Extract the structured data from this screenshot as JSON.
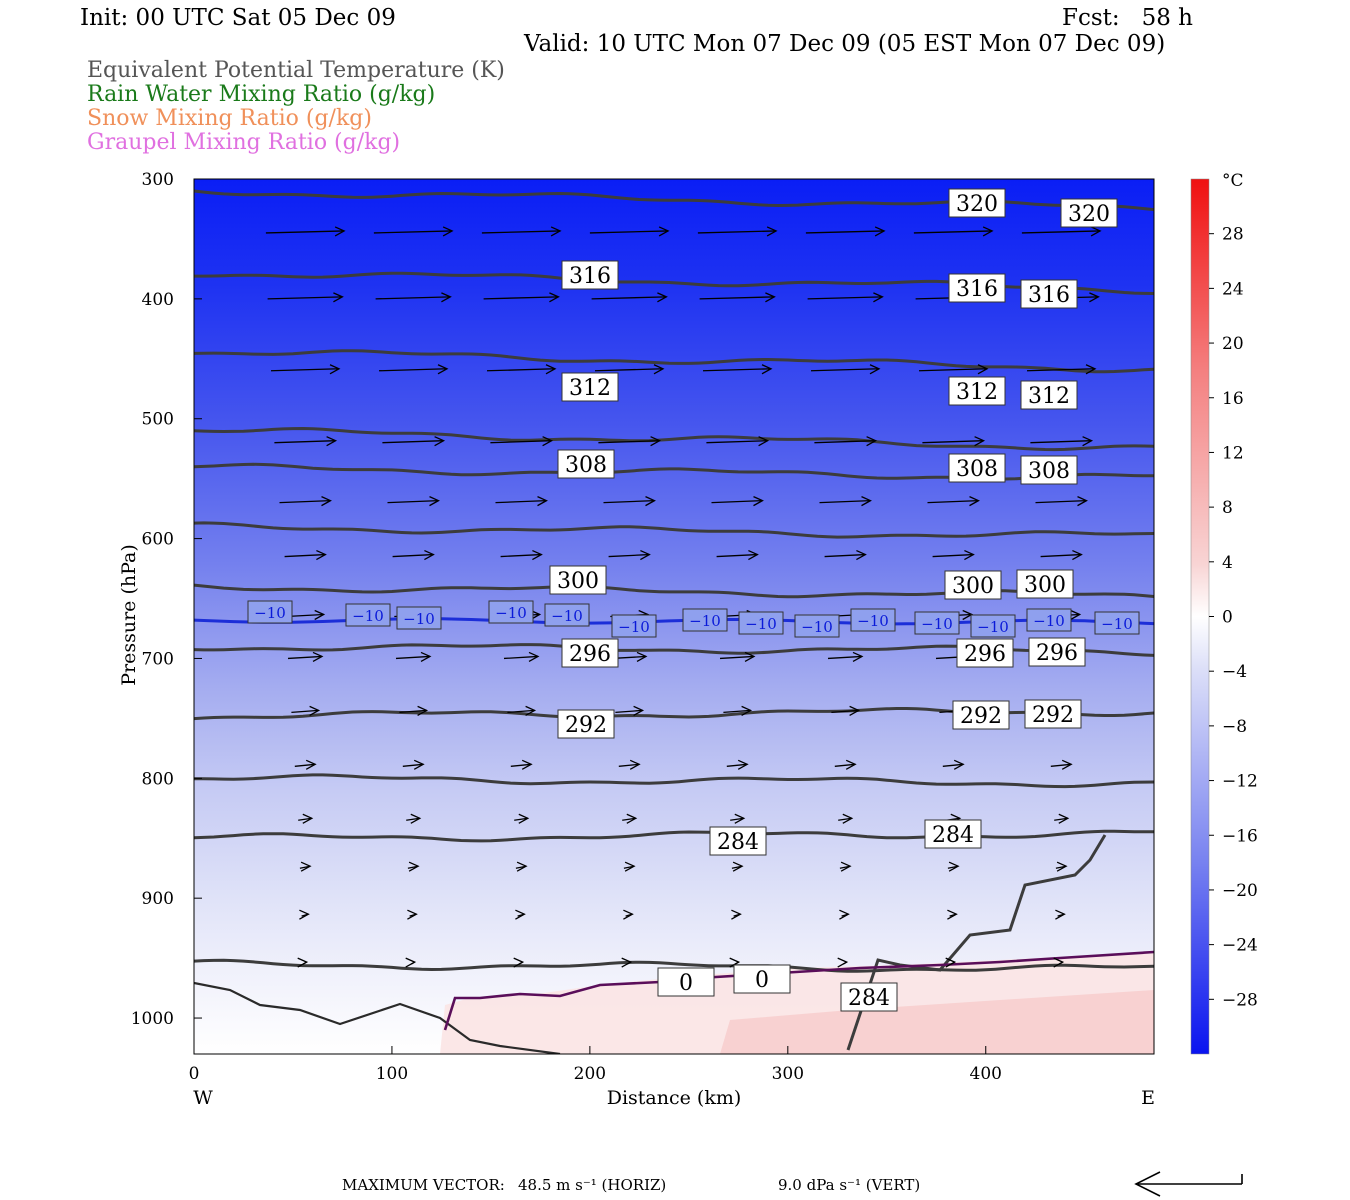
{
  "header": {
    "init": "Init: 00 UTC Sat 05 Dec 09",
    "fcst": "Fcst:   58 h",
    "valid": "Valid: 10 UTC Mon 07 Dec 09 (05 EST Mon 07 Dec 09)"
  },
  "variables": [
    {
      "label": "Equivalent Potential Temperature (K)",
      "color": "#555555"
    },
    {
      "label": "Rain Water Mixing Ratio (g/kg)",
      "color": "#1a7a1a"
    },
    {
      "label": "Snow Mixing Ratio (g/kg)",
      "color": "#f0905a"
    },
    {
      "label": "Graupel Mixing Ratio (g/kg)",
      "color": "#e070e0"
    }
  ],
  "chart_data": {
    "type": "contour-cross-section",
    "xlabel": "Distance (km)",
    "ylabel": "Pressure (hPa)",
    "x_ticks": [
      0,
      100,
      200,
      300,
      400
    ],
    "xlim": [
      0,
      485
    ],
    "y_ticks": [
      300,
      400,
      500,
      600,
      700,
      800,
      900,
      1000
    ],
    "ylim": [
      300,
      1030
    ],
    "x_end_labels": {
      "left": "W",
      "right": "E"
    },
    "theta_e_contours_K": [
      284,
      292,
      296,
      300,
      308,
      312,
      316,
      320
    ],
    "temperature_contours_C": [
      -10,
      0
    ],
    "colorbar": {
      "unit": "°C",
      "ticks": [
        28,
        24,
        20,
        16,
        12,
        8,
        4,
        0,
        -4,
        -8,
        -12,
        -16,
        -20,
        -24,
        -28
      ],
      "range": [
        -32,
        32
      ]
    },
    "max_vector": {
      "label": "MAXIMUM VECTOR:",
      "horiz": "48.5 m s⁻¹ (HORIZ)",
      "vert": "9.0 dPa s⁻¹ (VERT)"
    }
  }
}
